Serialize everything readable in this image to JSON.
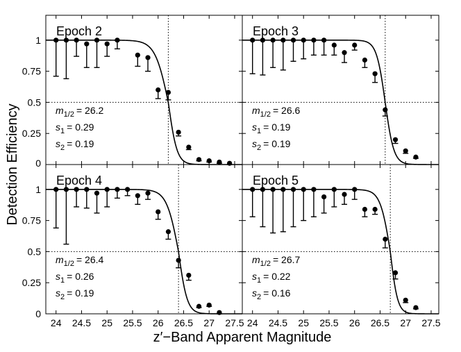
{
  "chart_data": {
    "type": "scatter",
    "xlabel": "z′−Band Apparent Magnitude",
    "ylabel": "Detection Efficiency",
    "xlim": [
      23.8,
      27.65
    ],
    "ylim": [
      0,
      1.2
    ],
    "xticks": [
      "24",
      "24.5",
      "25",
      "25.5",
      "26",
      "26.5",
      "27",
      "27.5"
    ],
    "yticks": [
      "0",
      "0.25",
      "0.5",
      "0.75",
      "1"
    ],
    "grid": false,
    "layout": "2x2 panels sharing axes",
    "panels": [
      {
        "title": "Epoch 2",
        "m_half": 26.2,
        "params": {
          "m_sub": "1/2",
          "m_value": "= 26.2",
          "s1_value": "= 0.29",
          "s2_value": "= 0.19"
        },
        "points": [
          {
            "x": 24.0,
            "y": 1.0,
            "lo": 0.71
          },
          {
            "x": 24.2,
            "y": 1.0,
            "lo": 0.69
          },
          {
            "x": 24.4,
            "y": 1.0,
            "lo": 0.87
          },
          {
            "x": 24.6,
            "y": 0.97,
            "lo": 0.78
          },
          {
            "x": 24.8,
            "y": 1.0,
            "lo": 0.78
          },
          {
            "x": 25.0,
            "y": 0.97,
            "lo": 0.87
          },
          {
            "x": 25.2,
            "y": 1.0,
            "lo": 0.93
          },
          {
            "x": 25.6,
            "y": 0.88,
            "lo": 0.79
          },
          {
            "x": 25.8,
            "y": 0.86,
            "lo": 0.75
          },
          {
            "x": 26.0,
            "y": 0.6,
            "lo": 0.53
          },
          {
            "x": 26.2,
            "y": 0.58,
            "lo": 0.52
          },
          {
            "x": 26.4,
            "y": 0.26,
            "lo": 0.23
          },
          {
            "x": 26.6,
            "y": 0.14,
            "lo": 0.12
          },
          {
            "x": 26.8,
            "y": 0.04,
            "lo": 0.03
          },
          {
            "x": 27.0,
            "y": 0.03,
            "lo": 0.02
          },
          {
            "x": 27.2,
            "y": 0.02,
            "lo": 0.01
          },
          {
            "x": 27.4,
            "y": 0.01,
            "lo": 0.0
          }
        ]
      },
      {
        "title": "Epoch 3",
        "m_half": 26.6,
        "params": {
          "m_sub": "1/2",
          "m_value": "= 26.6",
          "s1_value": "= 0.19",
          "s2_value": "= 0.19"
        },
        "points": [
          {
            "x": 24.0,
            "y": 1.0,
            "lo": 0.73
          },
          {
            "x": 24.2,
            "y": 1.0,
            "lo": 0.72
          },
          {
            "x": 24.4,
            "y": 1.0,
            "lo": 0.78
          },
          {
            "x": 24.6,
            "y": 1.0,
            "lo": 0.76
          },
          {
            "x": 24.8,
            "y": 1.0,
            "lo": 0.83
          },
          {
            "x": 25.0,
            "y": 1.0,
            "lo": 0.85
          },
          {
            "x": 25.2,
            "y": 1.0,
            "lo": 0.88
          },
          {
            "x": 25.4,
            "y": 1.0,
            "lo": 0.88
          },
          {
            "x": 25.6,
            "y": 0.96,
            "lo": 0.88
          },
          {
            "x": 25.8,
            "y": 0.9,
            "lo": 0.82
          },
          {
            "x": 26.0,
            "y": 0.96,
            "lo": 0.92
          },
          {
            "x": 26.2,
            "y": 0.84,
            "lo": 0.78
          },
          {
            "x": 26.4,
            "y": 0.73,
            "lo": 0.66
          },
          {
            "x": 26.6,
            "y": 0.44,
            "lo": 0.39
          },
          {
            "x": 26.8,
            "y": 0.2,
            "lo": 0.17
          },
          {
            "x": 27.0,
            "y": 0.11,
            "lo": 0.09
          },
          {
            "x": 27.2,
            "y": 0.06,
            "lo": 0.05
          }
        ]
      },
      {
        "title": "Epoch 4",
        "m_half": 26.4,
        "params": {
          "m_sub": "1/2",
          "m_value": "= 26.4",
          "s1_value": "= 0.26",
          "s2_value": "= 0.19"
        },
        "points": [
          {
            "x": 24.0,
            "y": 1.0,
            "lo": 0.69
          },
          {
            "x": 24.2,
            "y": 1.0,
            "lo": 0.56
          },
          {
            "x": 24.4,
            "y": 1.0,
            "lo": 0.86
          },
          {
            "x": 24.6,
            "y": 1.0,
            "lo": 0.85
          },
          {
            "x": 24.8,
            "y": 0.97,
            "lo": 0.81
          },
          {
            "x": 25.0,
            "y": 1.0,
            "lo": 0.86
          },
          {
            "x": 25.2,
            "y": 1.0,
            "lo": 0.93
          },
          {
            "x": 25.4,
            "y": 1.0,
            "lo": 0.95
          },
          {
            "x": 25.6,
            "y": 0.95,
            "lo": 0.88
          },
          {
            "x": 25.8,
            "y": 0.97,
            "lo": 0.92
          },
          {
            "x": 26.0,
            "y": 0.82,
            "lo": 0.76
          },
          {
            "x": 26.2,
            "y": 0.66,
            "lo": 0.6
          },
          {
            "x": 26.4,
            "y": 0.43,
            "lo": 0.37
          },
          {
            "x": 26.6,
            "y": 0.31,
            "lo": 0.27
          },
          {
            "x": 26.8,
            "y": 0.06,
            "lo": 0.05
          },
          {
            "x": 27.0,
            "y": 0.07,
            "lo": 0.06
          },
          {
            "x": 27.2,
            "y": 0.01,
            "lo": 0.0
          }
        ]
      },
      {
        "title": "Epoch 5",
        "m_half": 26.7,
        "params": {
          "m_sub": "1/2",
          "m_value": "= 26.7",
          "s1_value": "= 0.22",
          "s2_value": "= 0.16"
        },
        "points": [
          {
            "x": 24.0,
            "y": 1.0,
            "lo": 0.78
          },
          {
            "x": 24.2,
            "y": 1.0,
            "lo": 0.7
          },
          {
            "x": 24.4,
            "y": 1.0,
            "lo": 0.65
          },
          {
            "x": 24.6,
            "y": 1.0,
            "lo": 0.66
          },
          {
            "x": 24.8,
            "y": 1.0,
            "lo": 0.7
          },
          {
            "x": 25.0,
            "y": 1.0,
            "lo": 0.75
          },
          {
            "x": 25.2,
            "y": 1.0,
            "lo": 0.78
          },
          {
            "x": 25.4,
            "y": 0.94,
            "lo": 0.81
          },
          {
            "x": 25.6,
            "y": 1.0,
            "lo": 0.86
          },
          {
            "x": 25.8,
            "y": 0.96,
            "lo": 0.88
          },
          {
            "x": 26.0,
            "y": 1.0,
            "lo": 0.92
          },
          {
            "x": 26.2,
            "y": 0.84,
            "lo": 0.78
          },
          {
            "x": 26.4,
            "y": 0.84,
            "lo": 0.8
          },
          {
            "x": 26.6,
            "y": 0.6,
            "lo": 0.53
          },
          {
            "x": 26.8,
            "y": 0.33,
            "lo": 0.28
          },
          {
            "x": 27.0,
            "y": 0.11,
            "lo": 0.09
          },
          {
            "x": 27.2,
            "y": 0.05,
            "lo": 0.04
          }
        ]
      }
    ]
  }
}
